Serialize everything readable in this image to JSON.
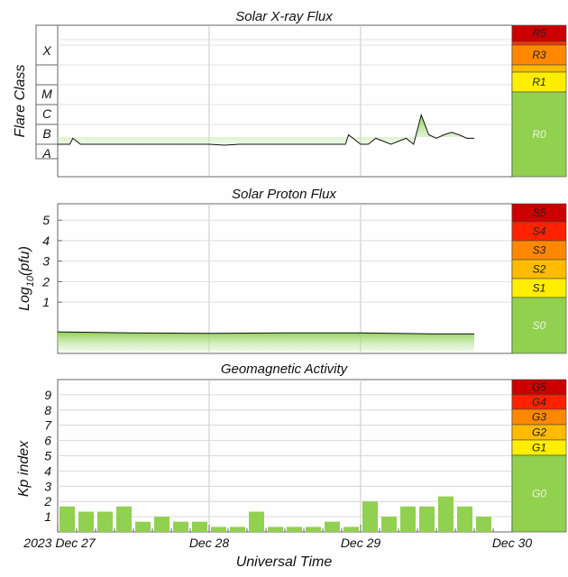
{
  "chart_data": [
    {
      "type": "area",
      "title": "Solar X-ray Flux",
      "ylabel": "Flare Class",
      "y_scale": "log",
      "yticks": [
        "A",
        "B",
        "C",
        "M",
        "X"
      ],
      "scale_labels": [
        "R5",
        "R3",
        "R1",
        "R0"
      ],
      "scale_colors": [
        "#cc0000",
        "#ff8800",
        "#ffee00",
        "#92d050"
      ],
      "x_range_days": [
        0,
        3
      ],
      "series": [
        {
          "x": [
            0,
            0.08,
            0.1,
            0.15,
            0.2,
            0.3,
            0.4,
            0.5,
            0.6,
            0.7,
            0.8,
            0.9,
            1.0,
            1.1,
            1.2,
            1.3,
            1.4,
            1.5,
            1.6,
            1.7,
            1.8,
            1.9,
            1.92,
            2.0,
            2.05,
            2.1,
            2.2,
            2.3,
            2.35,
            2.4,
            2.45,
            2.5,
            2.55,
            2.6,
            2.65,
            2.7,
            2.75
          ],
          "y_class": [
            "B1",
            "B1",
            "B2",
            "B1",
            "B1",
            "B1",
            "B1",
            "B1",
            "B1",
            "B1",
            "B1",
            "B1",
            "B1",
            "A9",
            "B1",
            "B1",
            "B1",
            "B1",
            "B1",
            "B1",
            "B1",
            "B1",
            "B3",
            "B1",
            "B1",
            "B2",
            "B1",
            "B2",
            "B1",
            "C3",
            "B3",
            "B2",
            "B3",
            "B4",
            "B3",
            "B2",
            "B2"
          ]
        }
      ]
    },
    {
      "type": "area",
      "title": "Solar Proton Flux",
      "ylabel": "Log10(pfu)",
      "ylabel_base": "Log",
      "ylabel_sub": "10",
      "ylabel_rest": "(pfu)",
      "yticks": [
        "1",
        "2",
        "3",
        "4",
        "5"
      ],
      "ylim": [
        -1.5,
        5.8
      ],
      "scale_labels": [
        "S5",
        "S4",
        "S3",
        "S2",
        "S1",
        "S0"
      ],
      "scale_colors": [
        "#cc0000",
        "#ff2200",
        "#ff8800",
        "#ffbb00",
        "#ffee00",
        "#92d050"
      ],
      "x_range_days": [
        0,
        3
      ],
      "series": [
        {
          "x": [
            0,
            0.5,
            1.0,
            1.5,
            2.0,
            2.5,
            2.75
          ],
          "y": [
            -0.45,
            -0.5,
            -0.52,
            -0.5,
            -0.5,
            -0.55,
            -0.55
          ]
        }
      ]
    },
    {
      "type": "bar",
      "title": "Geomagnetic Activity",
      "ylabel": "Kp index",
      "yticks": [
        "1",
        "2",
        "3",
        "4",
        "5",
        "6",
        "7",
        "8",
        "9"
      ],
      "ylim": [
        0,
        10
      ],
      "scale_labels": [
        "G5",
        "G4",
        "G3",
        "G2",
        "G1",
        "G0"
      ],
      "scale_colors": [
        "#cc0000",
        "#ff2200",
        "#ff8800",
        "#ffbb00",
        "#ffee00",
        "#92d050"
      ],
      "bar_color": "#92d050",
      "x_range_days": [
        0,
        3
      ],
      "bar_width_days": 0.125,
      "values": [
        1.67,
        1.33,
        1.33,
        1.67,
        0.67,
        1.0,
        0.67,
        0.67,
        0.33,
        0.33,
        1.33,
        0.33,
        0.33,
        0.33,
        0.67,
        0.33,
        2.0,
        1.0,
        1.67,
        1.67,
        2.33,
        1.67,
        1.0
      ]
    }
  ],
  "x_axis": {
    "ticks": [
      "2023 Dec 27",
      "Dec 28",
      "Dec 29",
      "Dec 30"
    ],
    "label": "Universal Time"
  }
}
